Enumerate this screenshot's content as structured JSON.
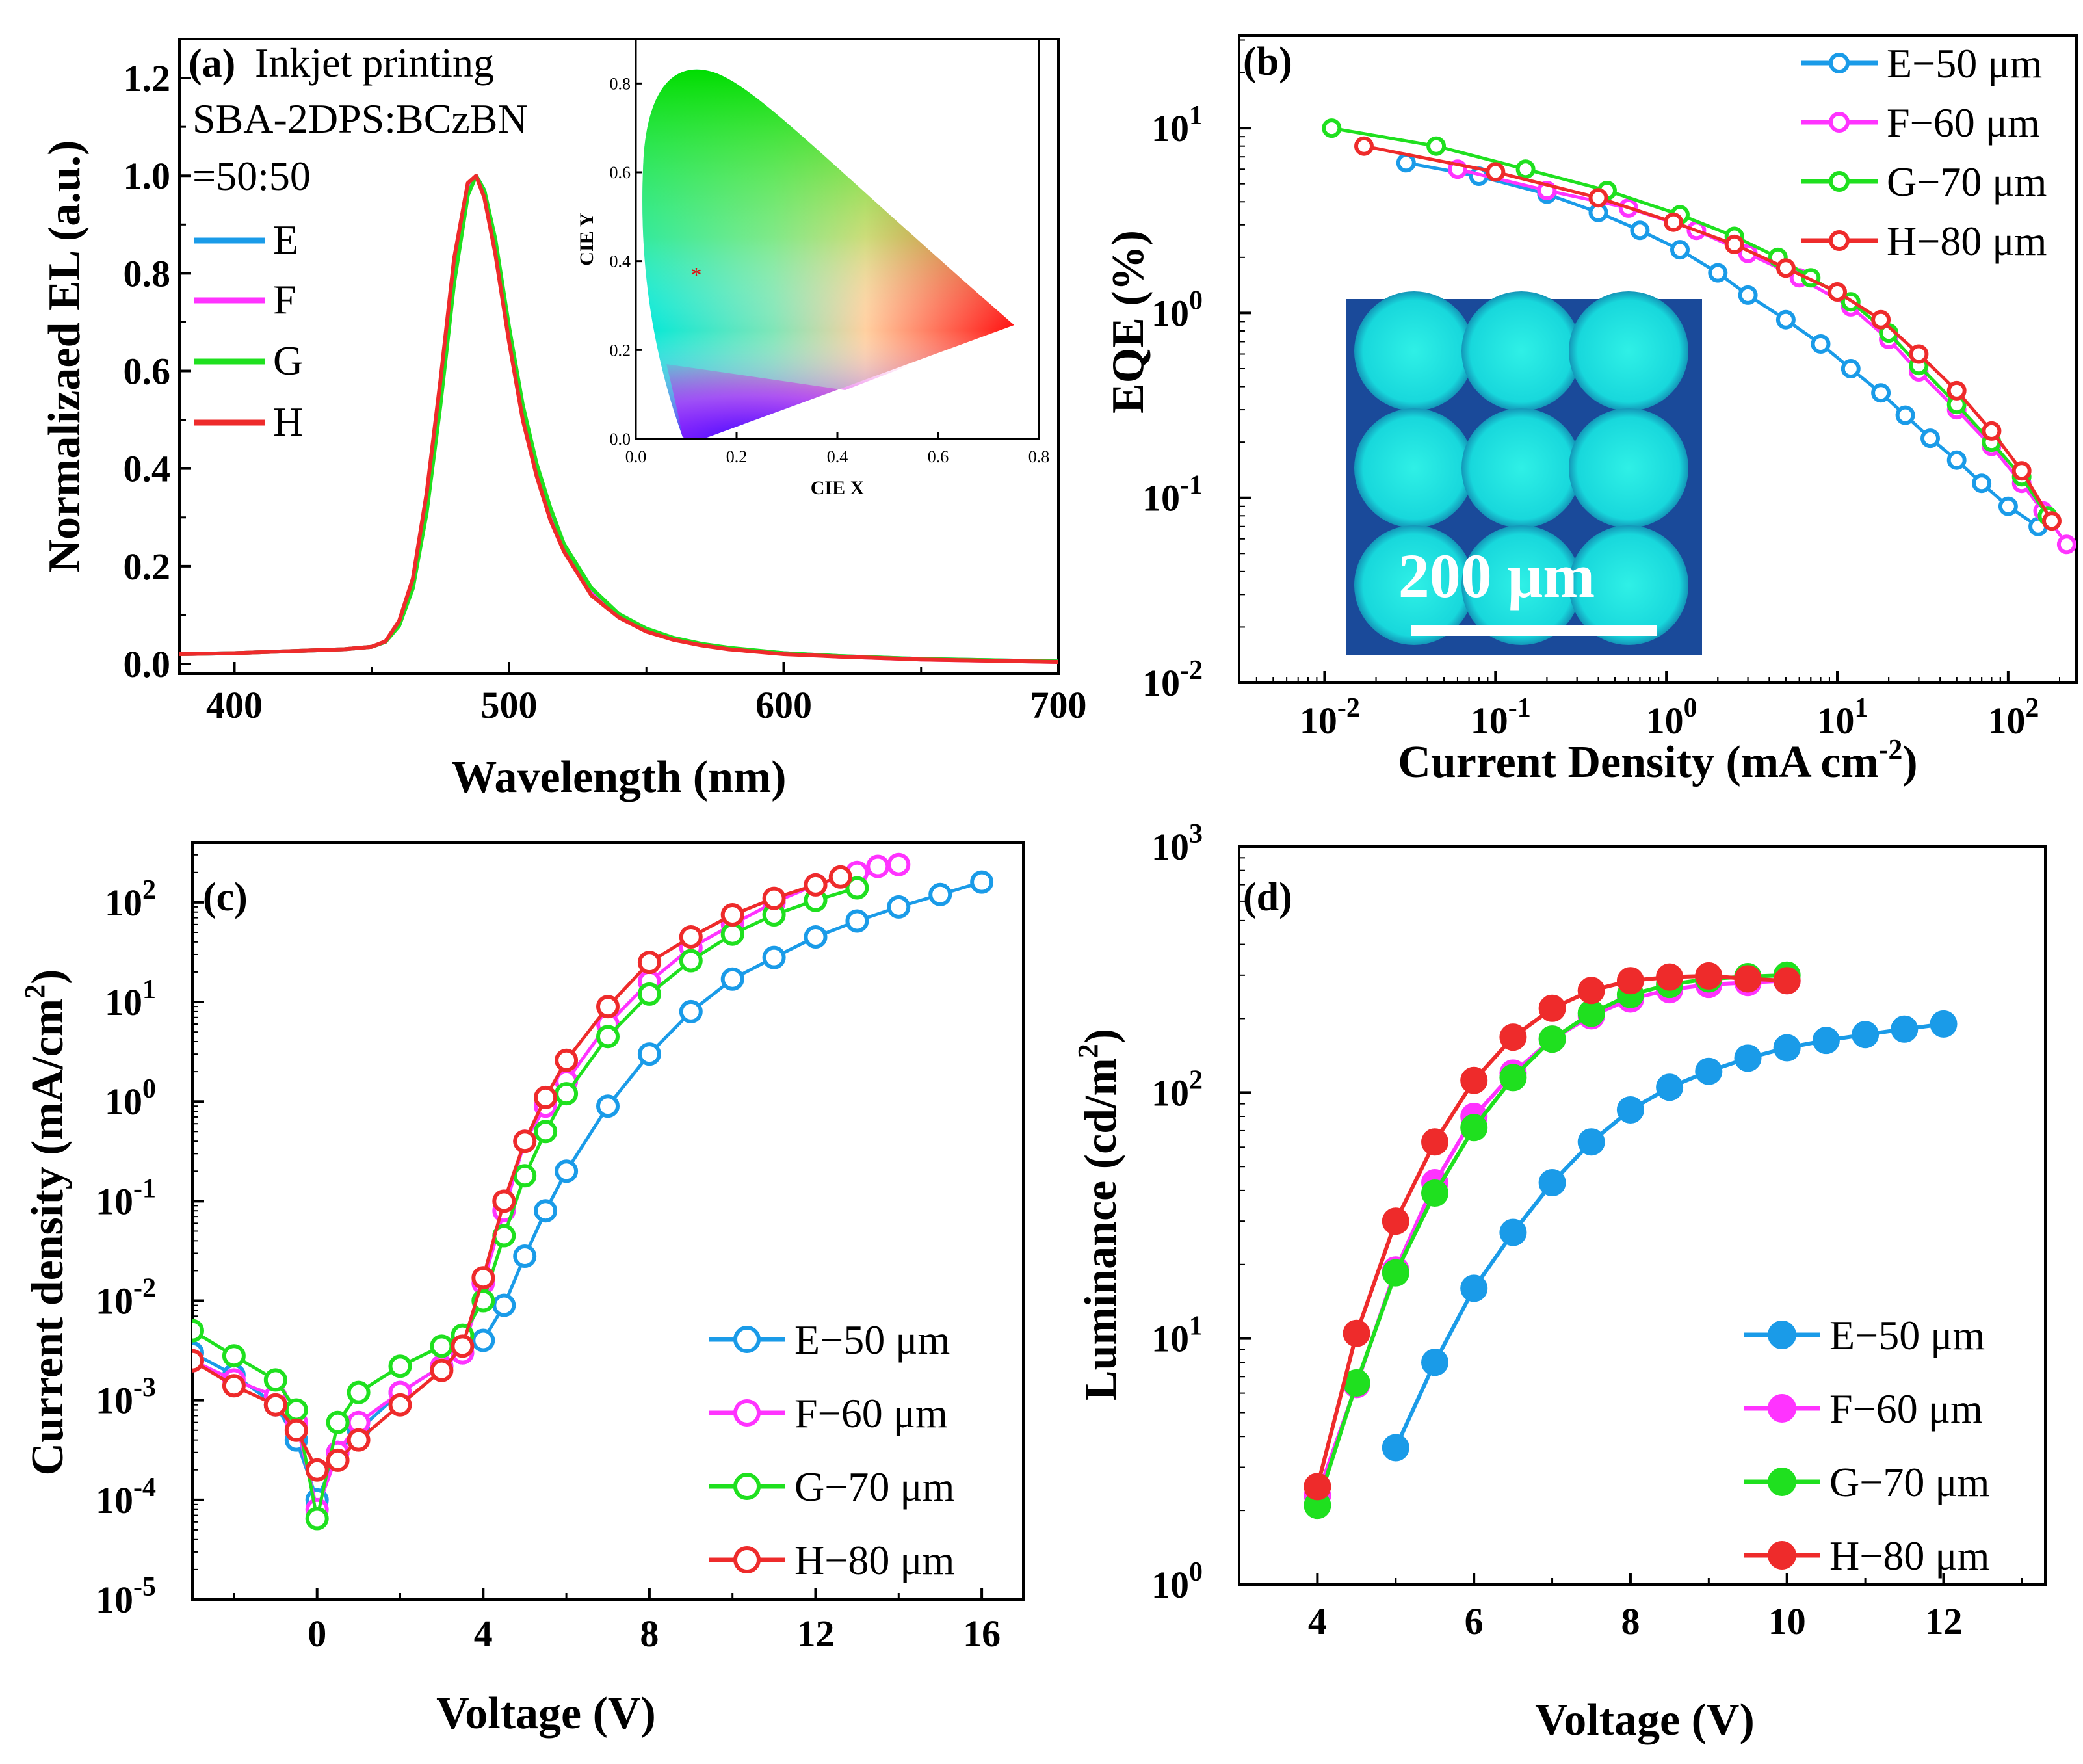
{
  "colors": {
    "E": "#1a9be8",
    "F": "#ff33ff",
    "G": "#1fe01f",
    "H": "#ee2b2b"
  },
  "chart_data": [
    {
      "panel": "(a)",
      "type": "line",
      "title_lines": [
        "Inkjet printing",
        "SBA-2DPS:BCzBN",
        "=50:50"
      ],
      "xlabel": "Wavelength (nm)",
      "ylabel": "Normalizaed EL (a.u.)",
      "xlim": [
        380,
        700
      ],
      "ylim": [
        -0.02,
        1.28
      ],
      "xticks": [
        "400",
        "500",
        "600",
        "700"
      ],
      "yticks": [
        "0.0",
        "0.2",
        "0.4",
        "0.6",
        "0.8",
        "1.0",
        "1.2"
      ],
      "legend": [
        "E",
        "F",
        "G",
        "H"
      ],
      "x": [
        380,
        400,
        420,
        440,
        450,
        455,
        460,
        465,
        470,
        475,
        480,
        485,
        488,
        491,
        495,
        500,
        505,
        510,
        515,
        520,
        530,
        540,
        550,
        560,
        570,
        580,
        600,
        620,
        650,
        700
      ],
      "series": [
        {
          "name": "E",
          "values": [
            0.02,
            0.022,
            0.026,
            0.03,
            0.035,
            0.045,
            0.08,
            0.16,
            0.32,
            0.55,
            0.8,
            0.97,
            1.0,
            0.97,
            0.86,
            0.68,
            0.52,
            0.4,
            0.31,
            0.24,
            0.15,
            0.1,
            0.07,
            0.052,
            0.04,
            0.032,
            0.022,
            0.016,
            0.01,
            0.005
          ]
        },
        {
          "name": "F",
          "values": [
            0.02,
            0.022,
            0.026,
            0.03,
            0.035,
            0.045,
            0.085,
            0.17,
            0.34,
            0.57,
            0.82,
            0.98,
            1.0,
            0.96,
            0.85,
            0.67,
            0.51,
            0.39,
            0.3,
            0.235,
            0.145,
            0.098,
            0.068,
            0.05,
            0.039,
            0.031,
            0.021,
            0.015,
            0.009,
            0.004
          ]
        },
        {
          "name": "G",
          "values": [
            0.02,
            0.022,
            0.026,
            0.03,
            0.035,
            0.045,
            0.078,
            0.155,
            0.31,
            0.53,
            0.78,
            0.96,
            1.0,
            0.97,
            0.87,
            0.69,
            0.53,
            0.41,
            0.32,
            0.245,
            0.155,
            0.102,
            0.072,
            0.053,
            0.041,
            0.033,
            0.022,
            0.016,
            0.01,
            0.005
          ]
        },
        {
          "name": "H",
          "values": [
            0.02,
            0.022,
            0.026,
            0.03,
            0.035,
            0.046,
            0.088,
            0.175,
            0.35,
            0.58,
            0.83,
            0.985,
            1.0,
            0.955,
            0.84,
            0.66,
            0.5,
            0.385,
            0.295,
            0.23,
            0.14,
            0.095,
            0.066,
            0.049,
            0.038,
            0.03,
            0.02,
            0.015,
            0.009,
            0.004
          ]
        }
      ],
      "inset": {
        "type": "scatter",
        "xlabel": "CIE X",
        "ylabel": "CIE Y",
        "xlim": [
          0,
          0.8
        ],
        "ylim": [
          0,
          0.9
        ],
        "xticks": [
          "0.0",
          "0.2",
          "0.4",
          "0.6",
          "0.8"
        ],
        "yticks": [
          "0.0",
          "0.2",
          "0.4",
          "0.6",
          "0.8"
        ],
        "point": {
          "x": 0.12,
          "y": 0.37,
          "marker": "*"
        }
      }
    },
    {
      "panel": "(b)",
      "type": "line",
      "xscale": "log",
      "yscale": "log",
      "xlabel": "Current Density (mA cm",
      "xlabel_sup": "-2",
      "xlabel_end": ")",
      "ylabel": "EQE  (%)",
      "xlim_log10": [
        -2.5,
        2.4
      ],
      "ylim_log10": [
        -2,
        1.5
      ],
      "xticks": [
        {
          "b": "10",
          "e": "-2"
        },
        {
          "b": "10",
          "e": "-1"
        },
        {
          "b": "10",
          "e": "0"
        },
        {
          "b": "10",
          "e": "1"
        },
        {
          "b": "10",
          "e": "2"
        }
      ],
      "yticks": [
        {
          "b": "10",
          "e": "-2"
        },
        {
          "b": "10",
          "e": "-1"
        },
        {
          "b": "10",
          "e": "0"
        },
        {
          "b": "10",
          "e": "1"
        }
      ],
      "legend": [
        "E−50 μm",
        "F−60 μm",
        "G−70 μm",
        "H−80 μm"
      ],
      "inset_label": "200 μm",
      "series": [
        {
          "name": "E−50 μm",
          "x": [
            0.03,
            0.08,
            0.2,
            0.4,
            0.7,
            1.2,
            2.0,
            3.0,
            5.0,
            8.0,
            12,
            18,
            25,
            35,
            50,
            70,
            100,
            150
          ],
          "y": [
            6.5,
            5.5,
            4.4,
            3.5,
            2.8,
            2.2,
            1.65,
            1.25,
            0.92,
            0.68,
            0.5,
            0.37,
            0.28,
            0.21,
            0.16,
            0.12,
            0.09,
            0.07
          ]
        },
        {
          "name": "F−60 μm",
          "x": [
            0.06,
            0.2,
            0.6,
            1.5,
            3.0,
            6.0,
            12,
            20,
            30,
            50,
            80,
            120,
            160,
            220
          ],
          "y": [
            6.0,
            4.6,
            3.7,
            2.8,
            2.1,
            1.55,
            1.08,
            0.72,
            0.48,
            0.3,
            0.19,
            0.12,
            0.085,
            0.056
          ]
        },
        {
          "name": "G−70 μm",
          "x": [
            0.011,
            0.045,
            0.15,
            0.45,
            1.2,
            2.5,
            4.5,
            7.0,
            12,
            20,
            30,
            50,
            80,
            120,
            170
          ],
          "y": [
            10.0,
            8.0,
            6.0,
            4.6,
            3.4,
            2.6,
            2.0,
            1.55,
            1.15,
            0.78,
            0.52,
            0.32,
            0.2,
            0.13,
            0.08
          ]
        },
        {
          "name": "H−80 μm",
          "x": [
            0.017,
            0.1,
            0.4,
            1.1,
            2.5,
            5.0,
            10,
            18,
            30,
            50,
            80,
            120,
            180
          ],
          "y": [
            8.0,
            5.8,
            4.2,
            3.1,
            2.35,
            1.75,
            1.3,
            0.92,
            0.6,
            0.38,
            0.23,
            0.14,
            0.075
          ]
        }
      ]
    },
    {
      "panel": "(c)",
      "type": "line",
      "yscale": "log",
      "xlabel": "Voltage (V)",
      "ylabel": "Current density (mA/cm",
      "ylabel_sup": "2",
      "ylabel_end": ")",
      "xlim": [
        -3,
        17
      ],
      "ylim_log10": [
        -5,
        2.6
      ],
      "xticks": [
        "0",
        "4",
        "8",
        "12",
        "16"
      ],
      "yticks": [
        {
          "b": "10",
          "e": "-5"
        },
        {
          "b": "10",
          "e": "-4"
        },
        {
          "b": "10",
          "e": "-3"
        },
        {
          "b": "10",
          "e": "-2"
        },
        {
          "b": "10",
          "e": "-1"
        },
        {
          "b": "10",
          "e": "0"
        },
        {
          "b": "10",
          "e": "1"
        },
        {
          "b": "10",
          "e": "2"
        }
      ],
      "legend": [
        "E−50 μm",
        "F−60 μm",
        "G−70 μm",
        "H−80 μm"
      ],
      "series": [
        {
          "name": "E−50 μm",
          "x": [
            -3,
            -2,
            -1,
            -0.5,
            0,
            0.5,
            1,
            2,
            3,
            3.5,
            4,
            4.5,
            5,
            5.5,
            6,
            7,
            8,
            9,
            10,
            11,
            12,
            13,
            14,
            15,
            16
          ],
          "y": [
            0.003,
            0.0018,
            0.0009,
            0.0004,
            0.0001,
            0.0003,
            0.0005,
            0.0012,
            0.0022,
            0.003,
            0.004,
            0.009,
            0.028,
            0.08,
            0.2,
            0.9,
            3.0,
            8.0,
            17,
            28,
            45,
            65,
            90,
            120,
            160
          ]
        },
        {
          "name": "F−60 μm",
          "x": [
            -3,
            -2,
            -1,
            -0.5,
            0,
            0.5,
            1,
            2,
            3,
            3.5,
            4,
            4.5,
            5,
            5.5,
            6,
            7,
            8,
            9,
            10,
            11,
            12,
            13,
            13.5,
            14
          ],
          "y": [
            0.0025,
            0.0016,
            0.0011,
            0.0006,
            8e-05,
            0.0003,
            0.0006,
            0.0012,
            0.0022,
            0.003,
            0.015,
            0.08,
            0.4,
            0.9,
            1.6,
            6.0,
            16,
            35,
            60,
            100,
            150,
            200,
            230,
            240
          ]
        },
        {
          "name": "G−70 μm",
          "x": [
            -3,
            -2,
            -1,
            -0.5,
            0,
            0.5,
            1,
            2,
            3,
            3.5,
            4,
            4.5,
            5,
            5.5,
            6,
            7,
            8,
            9,
            10,
            11,
            12,
            13
          ],
          "y": [
            0.005,
            0.0028,
            0.0016,
            0.0008,
            6.5e-05,
            0.0006,
            0.0012,
            0.0022,
            0.0035,
            0.0045,
            0.01,
            0.045,
            0.18,
            0.5,
            1.2,
            4.5,
            12,
            26,
            48,
            75,
            105,
            140
          ]
        },
        {
          "name": "H−80 μm",
          "x": [
            -3,
            -2,
            -1,
            -0.5,
            0,
            0.5,
            1,
            2,
            3,
            3.5,
            4,
            4.5,
            5,
            5.5,
            6,
            7,
            8,
            9,
            10,
            11,
            12,
            12.6
          ],
          "y": [
            0.0025,
            0.0014,
            0.0009,
            0.0005,
            0.0002,
            0.00025,
            0.0004,
            0.0009,
            0.002,
            0.0035,
            0.017,
            0.1,
            0.4,
            1.1,
            2.6,
            9.0,
            25,
            45,
            75,
            110,
            150,
            180
          ]
        }
      ]
    },
    {
      "panel": "(d)",
      "type": "line",
      "yscale": "log",
      "xlabel": "Voltage (V)",
      "ylabel": "Luminance (cd/m",
      "ylabel_sup": "2",
      "ylabel_end": ")",
      "xlim": [
        3,
        13.3
      ],
      "ylim_log10": [
        0,
        3
      ],
      "xticks": [
        "4",
        "6",
        "8",
        "10",
        "12"
      ],
      "yticks": [
        {
          "b": "10",
          "e": "0"
        },
        {
          "b": "10",
          "e": "1"
        },
        {
          "b": "10",
          "e": "2"
        },
        {
          "b": "10",
          "e": "3"
        }
      ],
      "legend": [
        "E−50 μm",
        "F−60 μm",
        "G−70 μm",
        "H−80 μm"
      ],
      "series": [
        {
          "name": "E−50 μm",
          "x": [
            5,
            5.5,
            6,
            6.5,
            7,
            7.5,
            8,
            8.5,
            9,
            9.5,
            10,
            10.5,
            11,
            11.5,
            12
          ],
          "y": [
            3.6,
            8.0,
            16,
            27,
            43,
            63,
            85,
            105,
            122,
            138,
            152,
            163,
            172,
            181,
            190
          ]
        },
        {
          "name": "F−60 μm",
          "x": [
            4,
            4.5,
            5,
            5.5,
            6,
            6.5,
            7,
            7.5,
            8,
            8.5,
            9,
            9.5,
            10
          ],
          "y": [
            2.3,
            6.5,
            19,
            43,
            80,
            120,
            165,
            205,
            240,
            262,
            275,
            280,
            285
          ]
        },
        {
          "name": "G−70 μm",
          "x": [
            4,
            4.5,
            5,
            5.5,
            6,
            6.5,
            7,
            7.5,
            8,
            8.5,
            9,
            9.5,
            10
          ],
          "y": [
            2.1,
            6.6,
            18.5,
            39,
            72,
            115,
            165,
            210,
            250,
            275,
            290,
            296,
            300
          ]
        },
        {
          "name": "H−80 μm",
          "x": [
            4,
            4.5,
            5,
            5.5,
            6,
            6.5,
            7,
            7.5,
            8,
            8.5,
            9,
            9.5,
            10
          ],
          "y": [
            2.5,
            10.5,
            30,
            63,
            112,
            168,
            220,
            260,
            285,
            295,
            298,
            290,
            285
          ]
        }
      ]
    }
  ]
}
